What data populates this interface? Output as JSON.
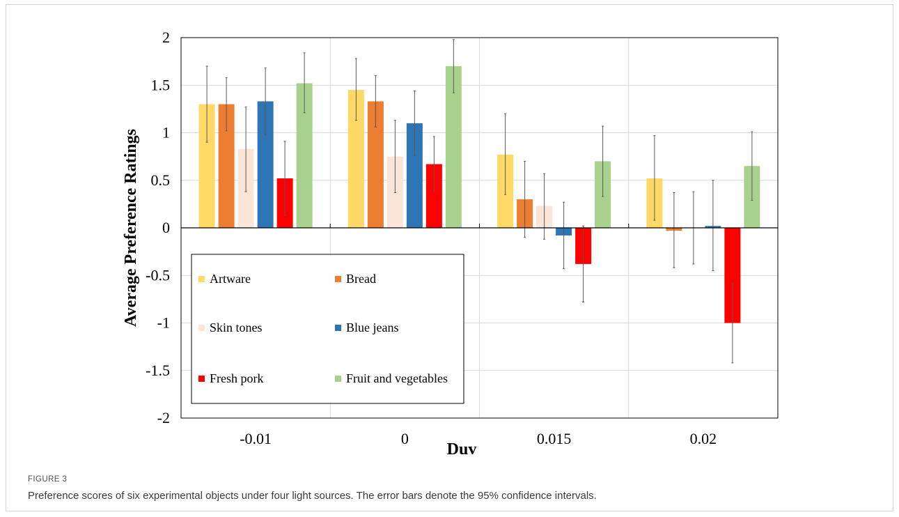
{
  "figure": {
    "label": "FIGURE 3",
    "caption": "Preference scores of six experimental objects under four light sources. The error bars denote the 95% confidence intervals."
  },
  "chart_data": {
    "type": "bar",
    "xlabel": "Duv",
    "ylabel": "Average Preference Ratings",
    "ylim": [
      -2,
      2
    ],
    "yticks": [
      2,
      1.5,
      1,
      0.5,
      0,
      -0.5,
      -1,
      -1.5,
      -2
    ],
    "grid": true,
    "legend_position": "bottom-left",
    "categories": [
      "-0.01",
      "0",
      "0.015",
      "0.02"
    ],
    "series": [
      {
        "name": "Artware",
        "color": "#FFD966",
        "values": [
          1.3,
          1.45,
          0.77,
          0.52
        ],
        "ci_low": [
          0.9,
          1.13,
          0.35,
          0.08
        ],
        "ci_high": [
          1.7,
          1.78,
          1.2,
          0.97
        ]
      },
      {
        "name": "Bread",
        "color": "#ED7D31",
        "values": [
          1.3,
          1.33,
          0.3,
          -0.03
        ],
        "ci_low": [
          1.02,
          1.06,
          -0.1,
          -0.42
        ],
        "ci_high": [
          1.58,
          1.6,
          0.7,
          0.37
        ]
      },
      {
        "name": "Skin tones",
        "color": "#FBE5D6",
        "values": [
          0.83,
          0.75,
          0.23,
          0.0
        ],
        "ci_low": [
          0.38,
          0.37,
          -0.12,
          -0.38
        ],
        "ci_high": [
          1.27,
          1.13,
          0.57,
          0.38
        ]
      },
      {
        "name": "Blue jeans",
        "color": "#2E75B6",
        "values": [
          1.33,
          1.1,
          -0.08,
          0.02
        ],
        "ci_low": [
          0.98,
          0.76,
          -0.43,
          -0.45
        ],
        "ci_high": [
          1.68,
          1.44,
          0.27,
          0.5
        ]
      },
      {
        "name": "Fresh pork",
        "color": "#FF0000",
        "values": [
          0.52,
          0.67,
          -0.38,
          -1.0
        ],
        "ci_low": [
          0.13,
          0.38,
          -0.78,
          -1.42
        ],
        "ci_high": [
          0.91,
          0.96,
          0.02,
          -0.58
        ]
      },
      {
        "name": "Fruit and vegetables",
        "color": "#A9D18E",
        "values": [
          1.52,
          1.7,
          0.7,
          0.65
        ],
        "ci_low": [
          1.21,
          1.42,
          0.33,
          0.29
        ],
        "ci_high": [
          1.84,
          1.98,
          1.07,
          1.01
        ]
      }
    ]
  }
}
